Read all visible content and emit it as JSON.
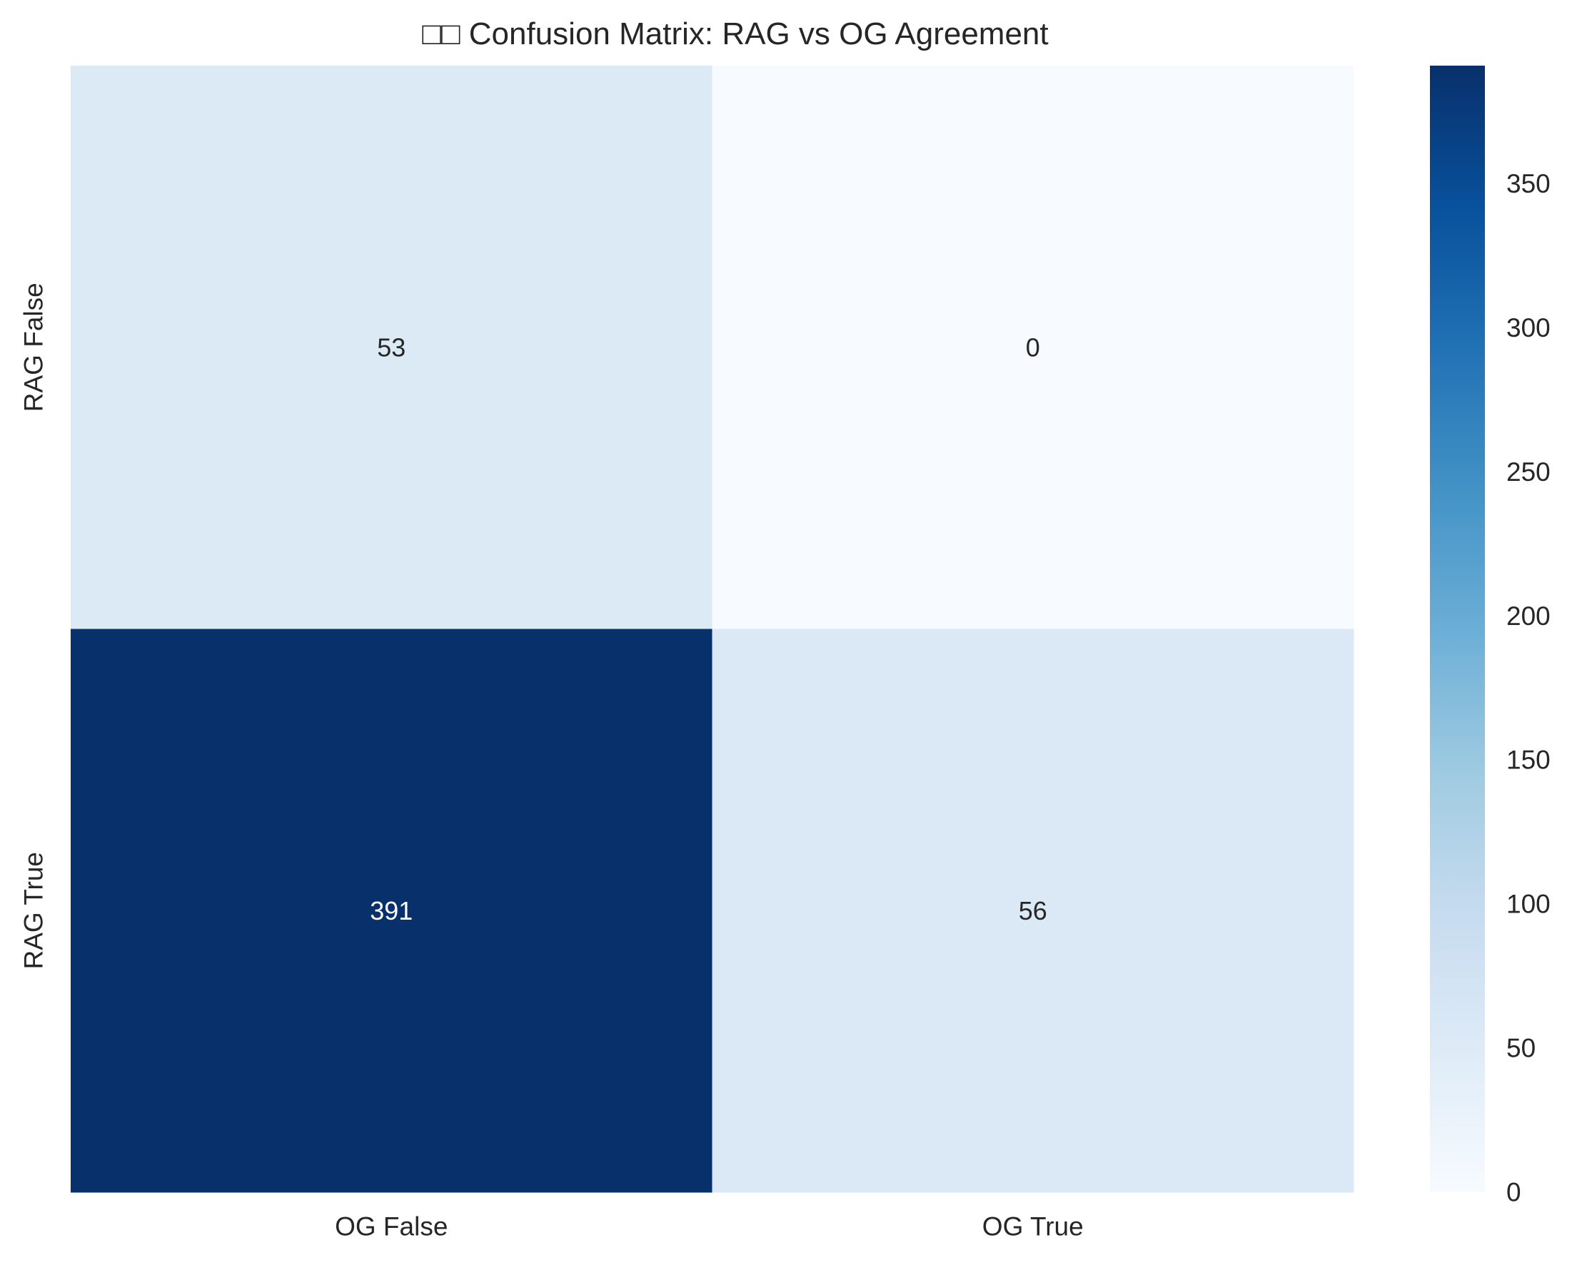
{
  "chart_data": {
    "type": "heatmap",
    "title": "□□ Confusion Matrix: RAG vs OG Agreement",
    "xlabel": "",
    "ylabel": "",
    "x_categories": [
      "OG False",
      "OG True"
    ],
    "y_categories": [
      "RAG False",
      "RAG True"
    ],
    "values": [
      [
        53,
        0
      ],
      [
        391,
        56
      ]
    ],
    "colormap": "Blues",
    "colorbar": {
      "range": [
        0,
        391
      ],
      "ticks": [
        0,
        50,
        100,
        150,
        200,
        250,
        300,
        350
      ],
      "tick_labels": [
        "0",
        "50",
        "100",
        "150",
        "200",
        "250",
        "300",
        "350"
      ]
    },
    "annotations_shown": true,
    "grid": false
  }
}
